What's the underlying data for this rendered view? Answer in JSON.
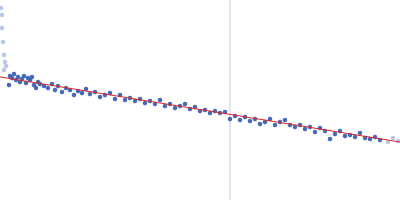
{
  "chart_data": {
    "type": "scatter",
    "tick_labels": false,
    "grid": false,
    "xlim": [
      0,
      400
    ],
    "ylim": [
      0,
      200
    ],
    "series": [
      {
        "type": "line",
        "color": "#cdd8ea",
        "line_style": "solid",
        "x": [
          230,
          230
        ],
        "values": [
          0,
          200
        ]
      },
      {
        "type": "scatter",
        "color": "#b3c5e6",
        "marker": "circle",
        "x": [
          1,
          2,
          2,
          3,
          4,
          5,
          4,
          6,
          388,
          393,
          398
        ],
        "values": [
          192,
          185,
          172,
          158,
          145,
          138,
          130,
          134,
          58,
          62,
          59
        ]
      },
      {
        "type": "scatter",
        "color": "#3a62b5",
        "marker": "circle",
        "x": [
          9,
          10,
          12,
          14,
          16,
          18,
          20,
          22,
          24,
          26,
          28,
          30,
          32,
          34,
          36,
          38,
          40,
          44,
          48,
          52,
          55,
          58,
          62,
          66,
          70,
          74,
          78,
          82,
          86,
          90,
          95,
          100,
          105,
          110,
          115,
          120,
          125,
          130,
          135,
          140,
          145,
          150,
          155,
          160,
          165,
          170,
          175,
          180,
          185,
          190,
          195,
          200,
          205,
          210,
          215,
          220,
          225,
          230,
          235,
          240,
          245,
          250,
          255,
          260,
          265,
          270,
          275,
          280,
          285,
          290,
          295,
          300,
          305,
          310,
          315,
          320,
          325,
          330,
          335,
          340,
          345,
          350,
          355,
          360,
          365,
          370,
          375,
          380
        ],
        "values": [
          115,
          124,
          122,
          126,
          120,
          123,
          118,
          121,
          124,
          117,
          122,
          120,
          123,
          115,
          112,
          118,
          116,
          114,
          112,
          116,
          110,
          114,
          108,
          112,
          110,
          105,
          109,
          107,
          111,
          106,
          108,
          103,
          105,
          107,
          101,
          105,
          100,
          102,
          99,
          101,
          97,
          99,
          96,
          100,
          94,
          96,
          92,
          94,
          96,
          91,
          93,
          89,
          90,
          87,
          89,
          87,
          88,
          81,
          84,
          80,
          83,
          79,
          81,
          76,
          78,
          81,
          75,
          78,
          80,
          75,
          73,
          75,
          71,
          73,
          68,
          72,
          69,
          61,
          66,
          69,
          64,
          65,
          63,
          67,
          62,
          61,
          63,
          60
        ]
      },
      {
        "type": "line",
        "color": "#e02828",
        "line_style": "solid",
        "x": [
          0,
          400
        ],
        "values": [
          123,
          58
        ]
      }
    ]
  }
}
